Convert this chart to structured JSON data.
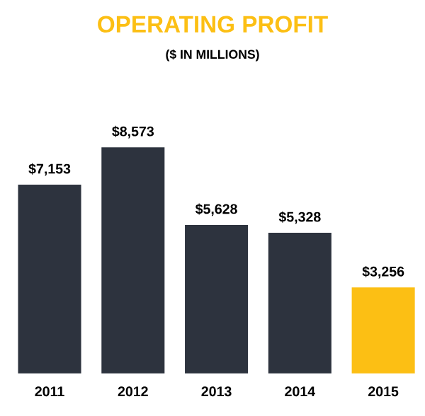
{
  "chart_data": {
    "type": "bar",
    "title": "OPERATING PROFIT",
    "subtitle": "($ IN MILLIONS)",
    "categories": [
      "2011",
      "2012",
      "2013",
      "2014",
      "2015"
    ],
    "values": [
      7153,
      8573,
      5628,
      5328,
      3256
    ],
    "value_labels": [
      "$7,153",
      "$8,573",
      "$5,628",
      "$5,328",
      "$3,256"
    ],
    "colors": [
      "#2d333e",
      "#2d333e",
      "#2d333e",
      "#2d333e",
      "#fcbf14"
    ]
  }
}
